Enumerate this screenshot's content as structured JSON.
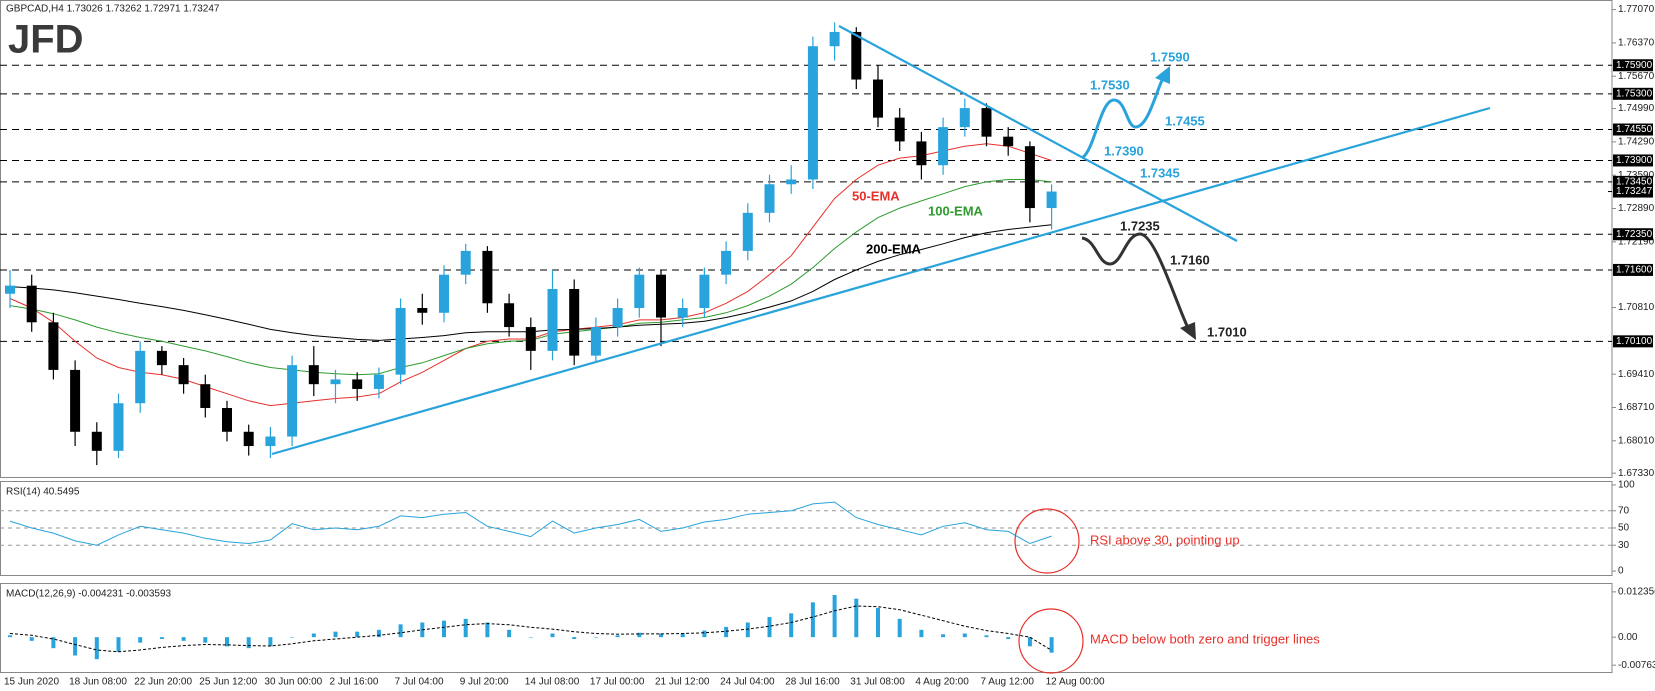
{
  "logo": "JFD",
  "chart_data": [
    {
      "type": "candlestick",
      "title": "GBPCAD,H4 1.73026 1.73262 1.72971 1.73247",
      "categories": [
        "15 Jun 2020",
        null,
        null,
        "18 Jun 08:00",
        null,
        null,
        "22 Jun 20:00",
        null,
        null,
        "25 Jun 12:00",
        null,
        null,
        "30 Jun 00:00",
        null,
        null,
        "2 Jul 16:00",
        null,
        null,
        "7 Jul 04:00",
        null,
        null,
        "9 Jul 20:00",
        null,
        null,
        "14 Jul 08:00",
        null,
        null,
        "17 Jul 00:00",
        null,
        null,
        "21 Jul 12:00",
        null,
        null,
        "24 Jul 04:00",
        null,
        null,
        "28 Jul 16:00",
        null,
        null,
        "31 Jul 08:00",
        null,
        null,
        "4 Aug 20:00",
        null,
        null,
        "7 Aug 12:00",
        null,
        null,
        "12 Aug 00:00"
      ],
      "open": [
        1.711,
        1.7127,
        1.705,
        1.695,
        1.682,
        1.678,
        1.688,
        1.699,
        1.696,
        1.692,
        1.687,
        1.682,
        1.679,
        1.681,
        1.696,
        1.692,
        1.693,
        1.691,
        1.694,
        1.708,
        1.707,
        1.715,
        1.72,
        1.709,
        1.704,
        1.699,
        1.712,
        1.698,
        1.704,
        1.708,
        1.715,
        1.706,
        1.708,
        1.715,
        1.72,
        1.728,
        1.734,
        1.735,
        1.763,
        1.766,
        1.756,
        1.748,
        1.743,
        1.738,
        1.746,
        1.75,
        1.744,
        1.742,
        1.729
      ],
      "high": [
        1.716,
        1.715,
        1.707,
        1.697,
        1.684,
        1.69,
        1.701,
        1.7,
        1.6975,
        1.694,
        1.6885,
        1.6835,
        1.683,
        1.698,
        1.7,
        1.695,
        1.6945,
        1.6955,
        1.71,
        1.711,
        1.717,
        1.7215,
        1.721,
        1.711,
        1.706,
        1.716,
        1.714,
        1.706,
        1.71,
        1.7165,
        1.716,
        1.71,
        1.7165,
        1.722,
        1.73,
        1.736,
        1.738,
        1.765,
        1.768,
        1.767,
        1.759,
        1.75,
        1.745,
        1.748,
        1.752,
        1.751,
        1.746,
        1.743,
        1.734
      ],
      "low": [
        1.708,
        1.703,
        1.693,
        1.679,
        1.675,
        1.6765,
        1.686,
        1.694,
        1.69,
        1.685,
        1.68,
        1.677,
        1.6765,
        1.679,
        1.6895,
        1.688,
        1.6885,
        1.689,
        1.692,
        1.7045,
        1.705,
        1.713,
        1.707,
        1.702,
        1.695,
        1.697,
        1.696,
        1.6965,
        1.702,
        1.706,
        1.7,
        1.704,
        1.706,
        1.713,
        1.718,
        1.726,
        1.732,
        1.733,
        1.76,
        1.754,
        1.746,
        1.741,
        1.735,
        1.736,
        1.744,
        1.742,
        1.74,
        1.726,
        1.7245
      ],
      "close": [
        1.7127,
        1.705,
        1.695,
        1.682,
        1.678,
        1.688,
        1.699,
        1.696,
        1.692,
        1.687,
        1.682,
        1.679,
        1.681,
        1.696,
        1.692,
        1.693,
        1.691,
        1.694,
        1.708,
        1.707,
        1.715,
        1.72,
        1.709,
        1.704,
        1.699,
        1.712,
        1.698,
        1.704,
        1.708,
        1.715,
        1.706,
        1.708,
        1.715,
        1.72,
        1.728,
        1.734,
        1.735,
        1.763,
        1.766,
        1.756,
        1.748,
        1.743,
        1.738,
        1.746,
        1.75,
        1.744,
        1.742,
        1.729,
        1.73247
      ],
      "up_color": "#29a3dc",
      "down_color": "#000000",
      "series": [
        {
          "name": "50-EMA",
          "color": "#e8302a",
          "values": [
            1.71,
            1.708,
            1.705,
            1.701,
            1.6975,
            1.6955,
            1.6945,
            1.694,
            1.693,
            1.6915,
            1.69,
            1.6885,
            1.6875,
            1.688,
            1.6885,
            1.689,
            1.6893,
            1.69,
            1.6925,
            1.6945,
            1.697,
            1.6995,
            1.701,
            1.7015,
            1.7015,
            1.703,
            1.7035,
            1.704,
            1.7045,
            1.7055,
            1.7055,
            1.706,
            1.707,
            1.709,
            1.7115,
            1.715,
            1.719,
            1.725,
            1.731,
            1.735,
            1.738,
            1.7395,
            1.74,
            1.741,
            1.742,
            1.7425,
            1.742,
            1.7405,
            1.739
          ]
        },
        {
          "name": "100-EMA",
          "color": "#2e9b2e",
          "values": [
            1.7085,
            1.7078,
            1.7068,
            1.7055,
            1.704,
            1.7028,
            1.7018,
            1.701,
            1.7,
            1.699,
            1.6978,
            1.6965,
            1.6955,
            1.695,
            1.6945,
            1.6942,
            1.694,
            1.6942,
            1.6955,
            1.6965,
            1.698,
            1.6995,
            1.7005,
            1.701,
            1.7012,
            1.7025,
            1.703,
            1.7035,
            1.704,
            1.7048,
            1.705,
            1.7055,
            1.706,
            1.707,
            1.7085,
            1.7105,
            1.713,
            1.7165,
            1.7205,
            1.724,
            1.727,
            1.729,
            1.7305,
            1.732,
            1.7335,
            1.7345,
            1.735,
            1.735,
            1.7345
          ]
        },
        {
          "name": "200-EMA",
          "color": "#000000",
          "values": [
            1.7125,
            1.7122,
            1.7118,
            1.7112,
            1.7105,
            1.7098,
            1.709,
            1.7083,
            1.7075,
            1.7066,
            1.7056,
            1.7046,
            1.7035,
            1.7028,
            1.7022,
            1.7018,
            1.7014,
            1.7012,
            1.7015,
            1.7018,
            1.7022,
            1.7028,
            1.703,
            1.703,
            1.703,
            1.7034,
            1.7035,
            1.7037,
            1.704,
            1.7044,
            1.7046,
            1.7048,
            1.7052,
            1.706,
            1.707,
            1.7082,
            1.7095,
            1.7115,
            1.714,
            1.716,
            1.7178,
            1.7192,
            1.7203,
            1.7215,
            1.7228,
            1.7238,
            1.7245,
            1.725,
            1.7255
          ]
        }
      ],
      "ylim": [
        1.6725,
        1.7725
      ],
      "yticks": [
        {
          "value": 1.7707,
          "label": "1.77070"
        },
        {
          "value": 1.7637,
          "label": "1.76370"
        },
        {
          "value": 1.7567,
          "label": "1.75670"
        },
        {
          "value": 1.7499,
          "label": "1.74990"
        },
        {
          "value": 1.7429,
          "label": "1.74290"
        },
        {
          "value": 1.7359,
          "label": "1.73590"
        },
        {
          "value": 1.7289,
          "label": "1.72890"
        },
        {
          "value": 1.7219,
          "label": "1.72190"
        },
        {
          "value": 1.7081,
          "label": "1.70810"
        },
        {
          "value": 1.6941,
          "label": "1.69410"
        },
        {
          "value": 1.6871,
          "label": "1.68710"
        },
        {
          "value": 1.6801,
          "label": "1.68010"
        },
        {
          "value": 1.6733,
          "label": "1.67330"
        }
      ],
      "levels": [
        {
          "value": 1.759,
          "label": "1.75900"
        },
        {
          "value": 1.753,
          "label": "1.75300"
        },
        {
          "value": 1.7455,
          "label": "1.74550"
        },
        {
          "value": 1.739,
          "label": "1.73900"
        },
        {
          "value": 1.7345,
          "label": "1.73450"
        },
        {
          "value": 1.7235,
          "label": "1.72350"
        },
        {
          "value": 1.716,
          "label": "1.71600"
        },
        {
          "value": 1.701,
          "label": "1.70100"
        }
      ],
      "current_price": {
        "value": 1.73247,
        "label": "1.73247"
      },
      "annotations": [
        {
          "text": "1.7590",
          "color": "#29a3dc"
        },
        {
          "text": "1.7530",
          "color": "#29a3dc"
        },
        {
          "text": "1.7455",
          "color": "#29a3dc"
        },
        {
          "text": "1.7390",
          "color": "#29a3dc"
        },
        {
          "text": "1.7345",
          "color": "#29a3dc"
        },
        {
          "text": "1.7235",
          "color": "#222222"
        },
        {
          "text": "1.7160",
          "color": "#222222"
        },
        {
          "text": "1.7010",
          "color": "#222222"
        }
      ]
    },
    {
      "type": "line",
      "title": "RSI(14) 40.5495",
      "series": [
        {
          "color": "#29a3dc",
          "values": [
            58,
            50,
            44,
            35,
            30,
            42,
            52,
            48,
            44,
            38,
            34,
            32,
            36,
            55,
            48,
            50,
            48,
            52,
            64,
            62,
            66,
            68,
            52,
            46,
            40,
            58,
            44,
            50,
            54,
            60,
            46,
            50,
            57,
            60,
            66,
            68,
            70,
            78,
            80,
            62,
            54,
            48,
            42,
            52,
            56,
            48,
            46,
            32,
            40.5495
          ]
        }
      ],
      "ylim": [
        -4.6,
        103.4
      ],
      "yticks": [
        100,
        70,
        50,
        30,
        0
      ],
      "levels": [
        70,
        50,
        30
      ],
      "note": "RSI above 30, pointing up",
      "note_color": "#e8302a"
    },
    {
      "type": "macd",
      "title": "MACD(12,26,9) -0.004231 -0.003593",
      "histogram": {
        "color": "#29a3dc",
        "values": [
          0.0005,
          -0.001,
          -0.003,
          -0.005,
          -0.006,
          -0.004,
          -0.0015,
          -0.0005,
          -0.001,
          -0.0015,
          -0.0025,
          -0.003,
          -0.0025,
          0.0,
          0.001,
          0.0015,
          0.0015,
          0.002,
          0.0035,
          0.004,
          0.0045,
          0.005,
          0.004,
          0.002,
          0.0,
          0.001,
          -0.0005,
          0.0,
          0.0005,
          0.0012,
          0.001,
          0.001,
          0.0018,
          0.0028,
          0.004,
          0.0055,
          0.0065,
          0.0095,
          0.0115,
          0.0105,
          0.008,
          0.005,
          0.002,
          0.0008,
          0.001,
          0.0005,
          -0.0005,
          -0.0025,
          -0.004231
        ]
      },
      "signal": {
        "color": "#000000",
        "values": [
          0.001,
          0.0005,
          -0.0005,
          -0.002,
          -0.0035,
          -0.004,
          -0.0035,
          -0.0028,
          -0.0023,
          -0.002,
          -0.0021,
          -0.0023,
          -0.0024,
          -0.0018,
          -0.001,
          -0.0005,
          0.0,
          0.0005,
          0.0012,
          0.002,
          0.0027,
          0.0034,
          0.0037,
          0.0034,
          0.0027,
          0.0022,
          0.0015,
          0.001,
          0.0008,
          0.0009,
          0.0009,
          0.001,
          0.0012,
          0.0016,
          0.0022,
          0.003,
          0.004,
          0.0055,
          0.0072,
          0.0085,
          0.0083,
          0.0075,
          0.006,
          0.0045,
          0.003,
          0.0018,
          0.001,
          0.0,
          -0.003593
        ]
      },
      "ylim": [
        -0.0095,
        0.0145
      ],
      "yticks": [
        0.012356,
        {
          "value": 0,
          "label": "0.00"
        },
        -0.007638
      ],
      "note": "MACD below both zero and trigger lines",
      "note_color": "#e8302a"
    }
  ]
}
